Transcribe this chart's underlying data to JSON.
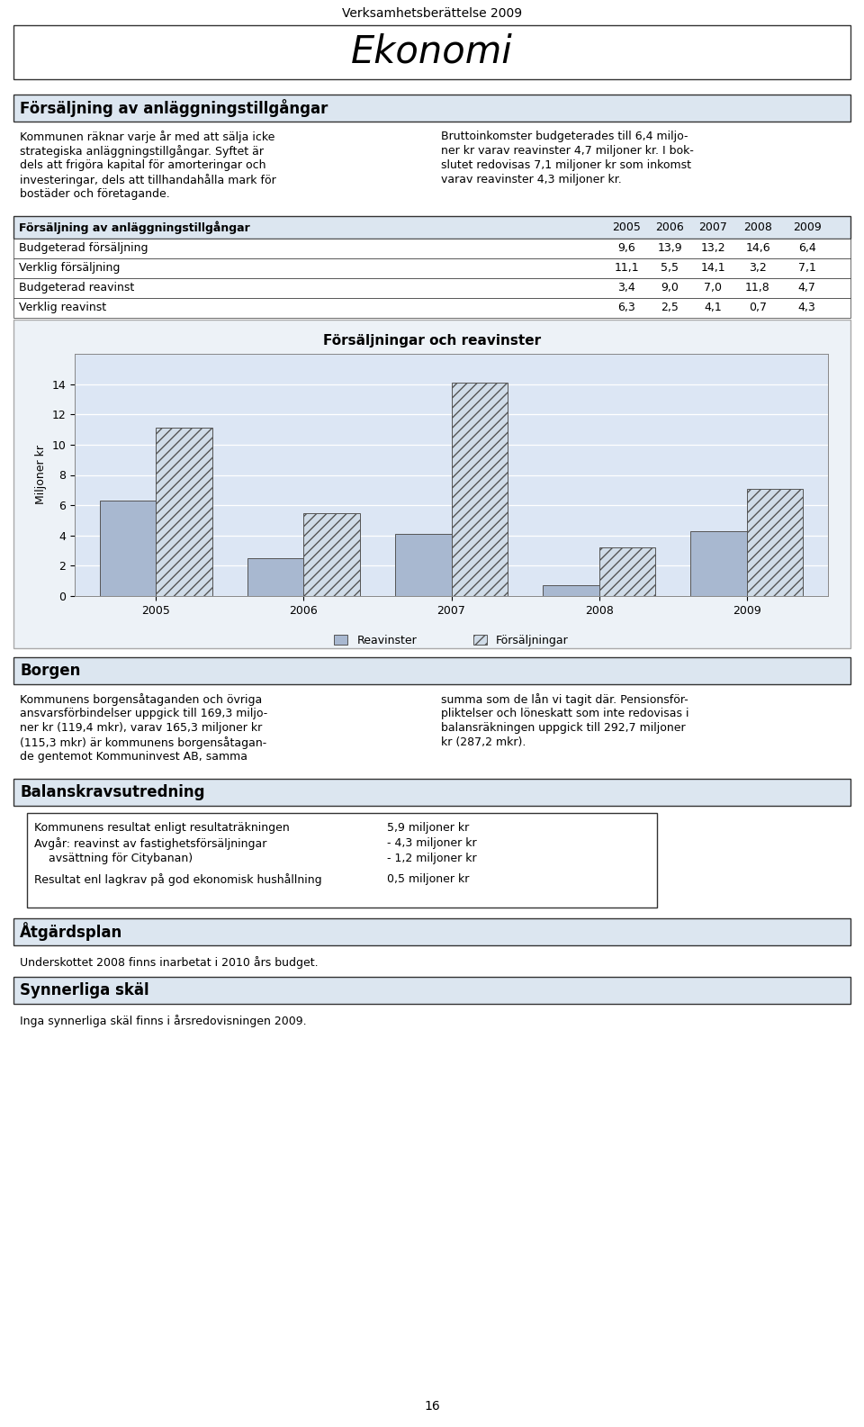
{
  "page_title": "Verksamhetsberättelse 2009",
  "main_title": "Ekonomi",
  "section1_title": "Försäljning av anläggningstillgångar",
  "table_headers": [
    "Försäljning av anläggningstillgångar",
    "2005",
    "2006",
    "2007",
    "2008",
    "2009"
  ],
  "table_rows": [
    [
      "Budgeterad försäljning",
      "9,6",
      "13,9",
      "13,2",
      "14,6",
      "6,4"
    ],
    [
      "Verklig försäljning",
      "11,1",
      "5,5",
      "14,1",
      "3,2",
      "7,1"
    ],
    [
      "Budgeterad reavinst",
      "3,4",
      "9,0",
      "7,0",
      "11,8",
      "4,7"
    ],
    [
      "Verklig reavinst",
      "6,3",
      "2,5",
      "4,1",
      "0,7",
      "4,3"
    ]
  ],
  "left_col_lines": [
    "Kommunen räknar varje år med att sälja icke",
    "strategiska anläggningstillgångar. Syftet är",
    "dels att frigöra kapital för amorteringar och",
    "investeringar, dels att tillhandahålla mark för",
    "bostäder och företagande."
  ],
  "right_col_lines": [
    "Bruttoinkomster budgeterades till 6,4 miljo-",
    "ner kr varav reavinster 4,7 miljoner kr. I bok-",
    "slutet redovisas 7,1 miljoner kr som inkomst",
    "varav reavinster 4,3 miljoner kr."
  ],
  "chart_title": "Försäljningar och reavinster",
  "chart_ylabel": "Miljoner kr",
  "chart_years": [
    "2005",
    "2006",
    "2007",
    "2008",
    "2009"
  ],
  "reavinster": [
    6.3,
    2.5,
    4.1,
    0.7,
    4.3
  ],
  "forsaljningar": [
    11.1,
    5.5,
    14.1,
    3.2,
    7.1
  ],
  "legend_reavinster": "Reavinster",
  "legend_forsaljningar": "Försäljningar",
  "bar_color_solid": "#a8b8d0",
  "bar_color_hatch": "#d0dce8",
  "chart_ylim": [
    0,
    16
  ],
  "chart_yticks": [
    0,
    2,
    4,
    6,
    8,
    10,
    12,
    14
  ],
  "section2_title": "Borgen",
  "s2_left_lines": [
    "Kommunens borgensåtaganden och övriga",
    "ansvarsförbindelser uppgick till 169,3 miljo-",
    "ner kr (119,4 mkr), varav 165,3 miljoner kr",
    "(115,3 mkr) är kommunens borgensåtagan-",
    "de gentemot Kommuninvest AB, samma"
  ],
  "s2_right_lines": [
    "summa som de lån vi tagit där. Pensionsför-",
    "pliktelser och löneskatt som inte redovisas i",
    "balansräkningen uppgick till 292,7 miljoner",
    "kr (287,2 mkr)."
  ],
  "section3_title": "Balanskravsutredning",
  "bk_lines_left": [
    "Kommunens resultat enligt resultaträkningen",
    "Avgår: reavinst av fastighetsförsäljningar",
    "    avsättning för Citybanan)"
  ],
  "bk_lines_right": [
    "5,9 miljoner kr",
    "- 4,3 miljoner kr",
    "- 1,2 miljoner kr"
  ],
  "bk_last_left": "Resultat enl lagkrav på god ekonomisk hushållning",
  "bk_last_right": "0,5 miljoner kr",
  "section4_title": "Åtgärdsplan",
  "section4_text": "Underskottet 2008 finns inarbetat i 2010 års budget.",
  "section5_title": "Synnerliga skäl",
  "section5_text": "Inga synnerliga skäl finns i årsredovisningen 2009.",
  "page_number": "16",
  "bg_color": "#ffffff",
  "section_header_bg": "#dce6f0",
  "table_header_bg": "#dce6f0",
  "chart_outer_bg": "#edf2f7",
  "chart_plot_bg": "#dce6f4"
}
